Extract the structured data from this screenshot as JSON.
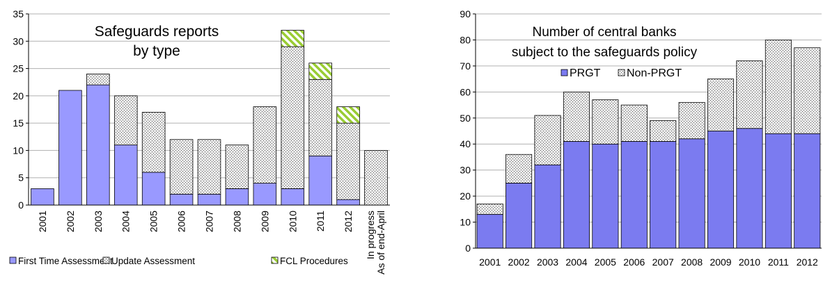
{
  "chart_data": [
    {
      "type": "bar",
      "stacked": true,
      "title": "Safeguards reports\nby type",
      "categories": [
        "2001",
        "2002",
        "2003",
        "2004",
        "2005",
        "2006",
        "2007",
        "2008",
        "2009",
        "2010",
        "2011",
        "2012",
        "In progress\nAs of end-April"
      ],
      "series": [
        {
          "name": "First Time Assessment",
          "values": [
            3,
            21,
            22,
            11,
            6,
            2,
            2,
            3,
            4,
            3,
            9,
            1,
            0
          ]
        },
        {
          "name": "Update Assessment",
          "values": [
            0,
            0,
            2,
            9,
            11,
            10,
            10,
            8,
            14,
            26,
            14,
            14,
            10
          ]
        },
        {
          "name": "FCL Procedures",
          "values": [
            0,
            0,
            0,
            0,
            0,
            0,
            0,
            0,
            0,
            3,
            3,
            3,
            0
          ]
        }
      ],
      "ylim": [
        0,
        35
      ],
      "yticks": [
        0,
        5,
        10,
        15,
        20,
        25,
        30,
        35
      ],
      "xlabel": "",
      "ylabel": "",
      "grid": true,
      "legend_position": "bottom",
      "colors": {
        "First Time Assessment": "#9999ff",
        "Update Assessment": "#d9d9d9",
        "FCL Procedures": "#ccff99"
      }
    },
    {
      "type": "bar",
      "stacked": true,
      "title": "Number of central banks\nsubject to the safeguards policy",
      "categories": [
        "2001",
        "2002",
        "2003",
        "2004",
        "2005",
        "2006",
        "2007",
        "2008",
        "2009",
        "2010",
        "2011",
        "2012"
      ],
      "series": [
        {
          "name": "PRGT",
          "values": [
            13,
            25,
            32,
            41,
            40,
            41,
            41,
            42,
            45,
            46,
            44,
            44
          ]
        },
        {
          "name": "Non-PRGT",
          "values": [
            4,
            11,
            19,
            19,
            17,
            14,
            8,
            14,
            20,
            26,
            36,
            33
          ]
        }
      ],
      "ylim": [
        0,
        90
      ],
      "yticks": [
        0,
        10,
        20,
        30,
        40,
        50,
        60,
        70,
        80,
        90
      ],
      "xlabel": "",
      "ylabel": "",
      "grid": true,
      "legend_position": "top-center",
      "colors": {
        "PRGT": "#7b7bf0",
        "Non-PRGT": "#d9d9d9"
      }
    }
  ]
}
